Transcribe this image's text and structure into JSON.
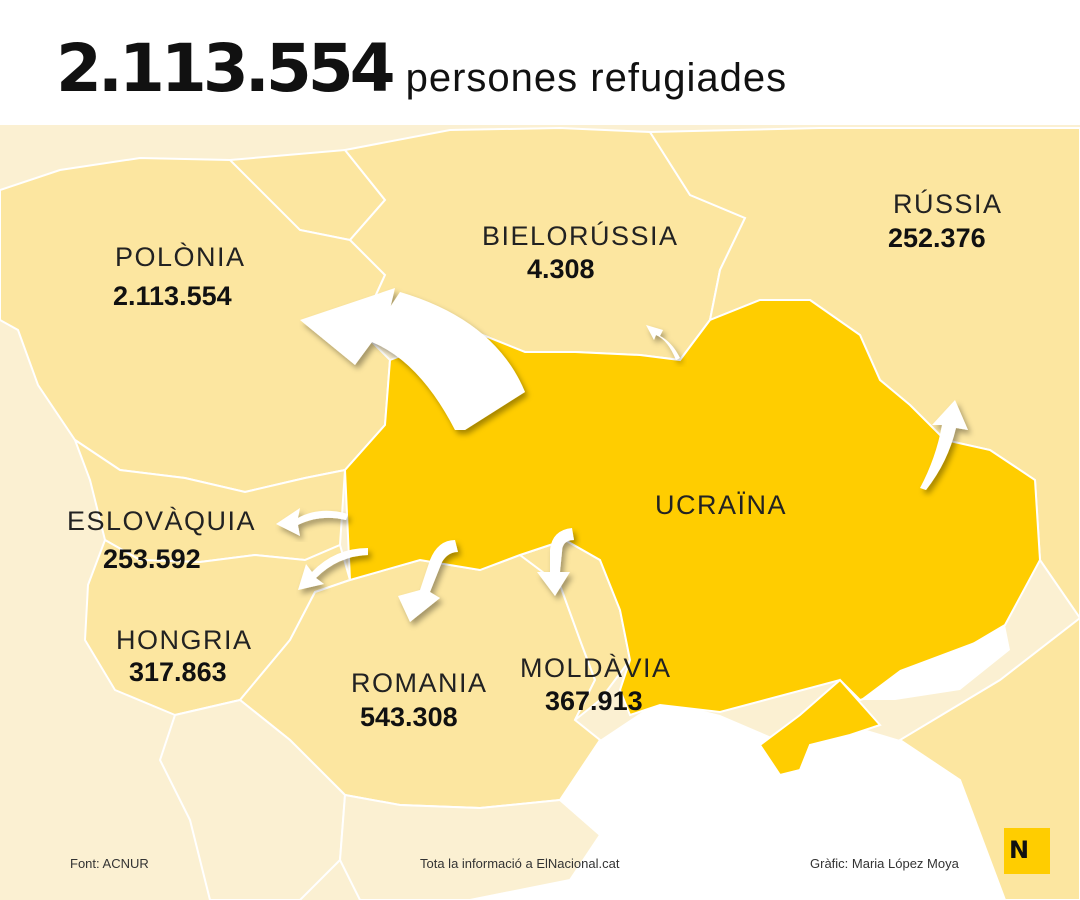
{
  "headline": {
    "number": "2.113.554",
    "text": "persones refugiades"
  },
  "countries": [
    {
      "id": "polonia",
      "name": "POLÒNIA",
      "value": "2.113.554",
      "refugees": 2113554
    },
    {
      "id": "bielorussia",
      "name": "BIELORÚSSIA",
      "value": "4.308",
      "refugees": 4308
    },
    {
      "id": "russia",
      "name": "RÚSSIA",
      "value": "252.376",
      "refugees": 252376
    },
    {
      "id": "eslovaquia",
      "name": "ESLOVÀQUIA",
      "value": "253.592",
      "refugees": 253592
    },
    {
      "id": "hongria",
      "name": "HONGRIA",
      "value": "317.863",
      "refugees": 317863
    },
    {
      "id": "romania",
      "name": "ROMANIA",
      "value": "543.308",
      "refugees": 543308
    },
    {
      "id": "moldavia",
      "name": "MOLDÀVIA",
      "value": "367.913",
      "refugees": 367913
    }
  ],
  "origin": {
    "name": "UCRAÏNA"
  },
  "colors": {
    "ukraine": "#FFCD00",
    "neighbors": "#FCE6A0",
    "far_countries": "#FBF0D2",
    "borders": "#FFFFFF",
    "arrows": "#FFFFFF",
    "logo_bg": "#FFCD00"
  },
  "footer": {
    "source": "Font: ACNUR",
    "info": "Tota la informació a ElNacional.cat",
    "credit": "Gràfic: Maria López Moya"
  },
  "logo": {
    "letter": "N"
  }
}
